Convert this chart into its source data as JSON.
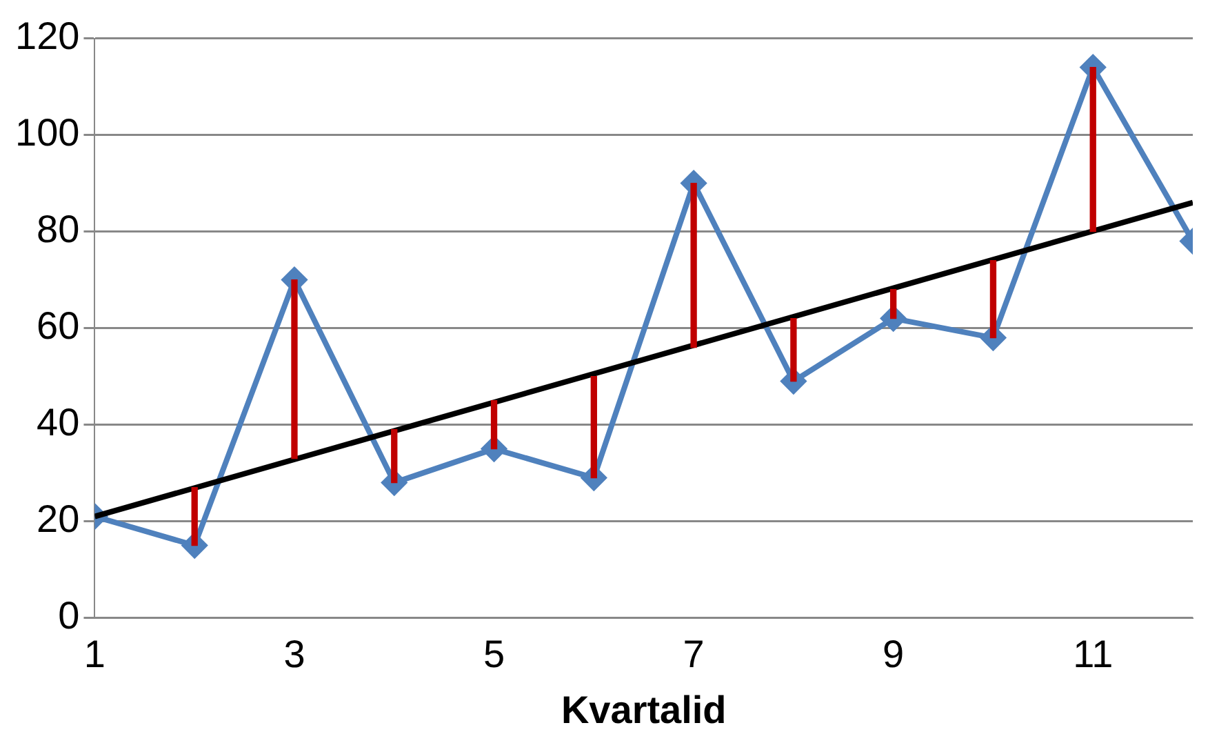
{
  "chart_data": {
    "type": "line",
    "xlabel": "Kvartalid",
    "xlim": [
      1,
      12
    ],
    "xticks": [
      1,
      3,
      5,
      7,
      9,
      11
    ],
    "ylim": [
      0,
      120
    ],
    "yticks": [
      0,
      20,
      40,
      60,
      80,
      100,
      120
    ],
    "grid": "y",
    "legend": false,
    "series": [
      {
        "type": "bar",
        "color": "#c00000",
        "x": [
          2,
          3,
          4,
          5,
          6,
          7,
          8,
          9,
          10,
          11
        ],
        "base": [
          15,
          33,
          28,
          35,
          29,
          56,
          49,
          62,
          58,
          80
        ],
        "values": [
          12,
          37,
          11,
          10,
          21,
          34,
          13,
          6,
          16,
          34
        ]
      },
      {
        "type": "line",
        "color": "#000000",
        "marker": "none",
        "x": [
          1,
          12
        ],
        "values": [
          21,
          86
        ]
      },
      {
        "color": "#4f81bd",
        "marker": "diamond",
        "x": [
          1,
          2,
          3,
          4,
          5,
          6,
          7,
          8,
          9,
          10,
          11,
          12
        ],
        "values": [
          21,
          15,
          70,
          28,
          35,
          29,
          90,
          49,
          62,
          58,
          114,
          78
        ]
      }
    ]
  }
}
